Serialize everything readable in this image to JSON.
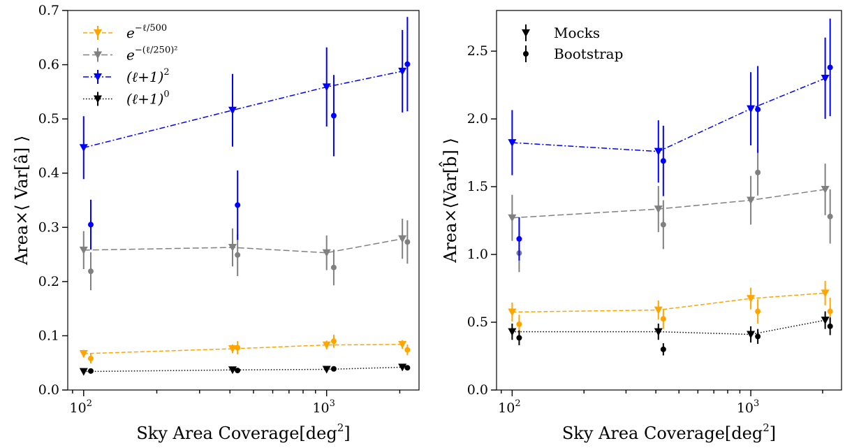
{
  "chart_data": [
    {
      "type": "scatter",
      "title": "",
      "xlabel": "Sky Area Coverage[deg",
      "xlabel_sup": "2",
      "xlabel_end": "]",
      "ylabel": "Area×⟨ Var[â] ⟩",
      "xscale": "log",
      "xlim": [
        86,
        2400
      ],
      "ylim": [
        0,
        0.7
      ],
      "yticks": [
        0.0,
        0.1,
        0.2,
        0.3,
        0.4,
        0.5,
        0.6,
        0.7
      ],
      "ytick_labels": [
        "0.0",
        "0.1",
        "0.2",
        "0.3",
        "0.4",
        "0.5",
        "0.6",
        "0.7"
      ],
      "xticks": [
        {
          "base": "10",
          "exp": "2"
        },
        {
          "base": "10",
          "exp": "3"
        }
      ],
      "legend_position": "upper-left",
      "legend": [
        {
          "label": "e^{-ℓ/500}",
          "base": "e",
          "exp": "−ℓ/500",
          "color": "#ffa500",
          "dash": "dashed"
        },
        {
          "label": "e^{-(ℓ/250)^2}",
          "base": "e",
          "exp": "−(ℓ/250)²",
          "color": "#808080",
          "dash": "long-dashed"
        },
        {
          "label": "(ℓ+1)^2",
          "base": "(ℓ+1)",
          "exp": "2",
          "color": "#0000ff",
          "dash": "dash-dot"
        },
        {
          "label": "(ℓ+1)^0",
          "base": "(ℓ+1)",
          "exp": "0",
          "color": "#000000",
          "dash": "dotted"
        }
      ],
      "series": [
        {
          "color": "#ffa500",
          "dash": "dashed",
          "mocks": {
            "x": [
              100,
              410,
              1000,
              2050
            ],
            "y": [
              0.067,
              0.076,
              0.083,
              0.084
            ],
            "err": [
              0.007,
              0.008,
              0.008,
              0.008
            ]
          },
          "bootstrap": {
            "x": [
              107,
              430,
              1070,
              2150
            ],
            "y": [
              0.058,
              0.078,
              0.09,
              0.074
            ],
            "err": [
              0.009,
              0.012,
              0.012,
              0.01
            ]
          }
        },
        {
          "color": "#808080",
          "dash": "long-dashed",
          "mocks": {
            "x": [
              100,
              410,
              1000,
              2050
            ],
            "y": [
              0.258,
              0.263,
              0.253,
              0.279
            ],
            "err": [
              0.035,
              0.035,
              0.032,
              0.037
            ]
          },
          "bootstrap": {
            "x": [
              107,
              430,
              1070,
              2150
            ],
            "y": [
              0.219,
              0.249,
              0.226,
              0.273
            ],
            "err": [
              0.035,
              0.039,
              0.033,
              0.04
            ]
          }
        },
        {
          "color": "#0000ff",
          "dash": "dash-dot",
          "mocks": {
            "x": [
              100,
              410,
              1000,
              2050
            ],
            "y": [
              0.447,
              0.516,
              0.559,
              0.588
            ],
            "err": [
              0.058,
              0.067,
              0.073,
              0.076
            ]
          },
          "bootstrap": {
            "x": [
              107,
              430,
              1070,
              2150
            ],
            "y": [
              0.305,
              0.341,
              0.506,
              0.601
            ],
            "err": [
              0.046,
              0.064,
              0.075,
              0.087
            ]
          }
        },
        {
          "color": "#000000",
          "dash": "dotted",
          "mocks": {
            "x": [
              100,
              410,
              1000,
              2050
            ],
            "y": [
              0.034,
              0.037,
              0.038,
              0.042
            ],
            "err": [
              0.004,
              0.004,
              0.004,
              0.004
            ]
          },
          "bootstrap": {
            "x": [
              107,
              430,
              1070,
              2150
            ],
            "y": [
              0.035,
              0.036,
              0.039,
              0.041
            ],
            "err": [
              0.003,
              0.003,
              0.003,
              0.003
            ]
          }
        }
      ]
    },
    {
      "type": "scatter",
      "title": "",
      "xlabel": "Sky Area Coverage[deg",
      "xlabel_sup": "2",
      "xlabel_end": "]",
      "ylabel": "Area×⟨Var[b̂] ⟩",
      "xscale": "log",
      "xlim": [
        86,
        2400
      ],
      "ylim": [
        0,
        2.8
      ],
      "yticks": [
        0.0,
        0.5,
        1.0,
        1.5,
        2.0,
        2.5
      ],
      "ytick_labels": [
        "0.0",
        "0.5",
        "1.0",
        "1.5",
        "2.0",
        "2.5"
      ],
      "xticks": [
        {
          "base": "10",
          "exp": "2"
        },
        {
          "base": "10",
          "exp": "3"
        }
      ],
      "legend_position": "upper-left",
      "legend": [
        {
          "label": "Mocks",
          "marker": "triangle",
          "color": "#000000"
        },
        {
          "label": "Bootstrap",
          "marker": "circle",
          "color": "#000000"
        }
      ],
      "series": [
        {
          "color": "#ffa500",
          "dash": "dashed",
          "mocks": {
            "x": [
              100,
              410,
              1000,
              2050
            ],
            "y": [
              0.575,
              0.59,
              0.675,
              0.715
            ],
            "err": [
              0.07,
              0.07,
              0.08,
              0.09
            ]
          },
          "bootstrap": {
            "x": [
              107,
              430,
              1070,
              2150
            ],
            "y": [
              0.485,
              0.525,
              0.58,
              0.58
            ],
            "err": [
              0.07,
              0.075,
              0.09,
              0.1
            ]
          }
        },
        {
          "color": "#808080",
          "dash": "long-dashed",
          "mocks": {
            "x": [
              100,
              410,
              1000,
              2050
            ],
            "y": [
              1.27,
              1.335,
              1.4,
              1.48
            ],
            "err": [
              0.17,
              0.17,
              0.18,
              0.19
            ]
          },
          "bootstrap": {
            "x": [
              107,
              430,
              1070,
              2150
            ],
            "y": [
              1.01,
              1.22,
              1.605,
              1.28
            ],
            "err": [
              0.14,
              0.18,
              0.17,
              0.2
            ]
          }
        },
        {
          "color": "#0000ff",
          "dash": "dash-dot",
          "mocks": {
            "x": [
              100,
              410,
              1000,
              2050
            ],
            "y": [
              1.825,
              1.76,
              2.075,
              2.3
            ],
            "err": [
              0.24,
              0.23,
              0.27,
              0.3
            ]
          },
          "bootstrap": {
            "x": [
              107,
              430,
              1070,
              2150
            ],
            "y": [
              1.115,
              1.69,
              2.07,
              2.38
            ],
            "err": [
              0.16,
              0.26,
              0.32,
              0.36
            ]
          }
        },
        {
          "color": "#000000",
          "dash": "dotted",
          "mocks": {
            "x": [
              100,
              410,
              1000,
              2050
            ],
            "y": [
              0.43,
              0.43,
              0.41,
              0.515
            ],
            "err": [
              0.06,
              0.06,
              0.06,
              0.065
            ]
          },
          "bootstrap": {
            "x": [
              107,
              430,
              1070,
              2150
            ],
            "y": [
              0.385,
              0.3,
              0.395,
              0.47
            ],
            "err": [
              0.055,
              0.045,
              0.055,
              0.065
            ]
          }
        }
      ]
    }
  ]
}
